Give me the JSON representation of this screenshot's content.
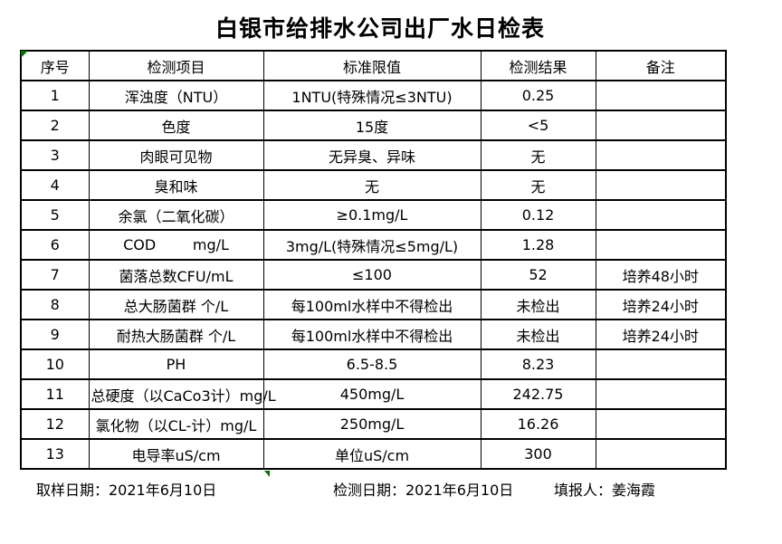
{
  "title": "白银市给排水公司出厂水日检表",
  "table": {
    "headers": [
      "序号",
      "检测项目",
      "标准限值",
      "检测结果",
      "备注"
    ],
    "rows": [
      {
        "no": "1",
        "item": "浑浊度（NTU）",
        "limit": "1NTU(特殊情况≤3NTU)",
        "result": "0.25",
        "note": ""
      },
      {
        "no": "2",
        "item": "色度",
        "limit": "15度",
        "result": "<5",
        "note": ""
      },
      {
        "no": "3",
        "item": "肉眼可见物",
        "limit": "无异臭、异味",
        "result": "无",
        "note": ""
      },
      {
        "no": "4",
        "item": "臭和味",
        "limit": "无",
        "result": "无",
        "note": ""
      },
      {
        "no": "5",
        "item": "余氯（二氧化碳）",
        "limit": "≥0.1mg/L",
        "result": "0.12",
        "note": ""
      },
      {
        "no": "6",
        "item": "COD        mg/L",
        "limit": "3mg/L(特殊情况≤5mg/L)",
        "result": "1.28",
        "note": ""
      },
      {
        "no": "7",
        "item": "菌落总数CFU/mL",
        "limit": "≤100",
        "result": "52",
        "note": "培养48小时"
      },
      {
        "no": "8",
        "item": "总大肠菌群 个/L",
        "limit": "每100ml水样中不得检出",
        "result": "未检出",
        "note": "培养24小时"
      },
      {
        "no": "9",
        "item": "耐热大肠菌群 个/L",
        "limit": "每100ml水样中不得检出",
        "result": "未检出",
        "note": "培养24小时"
      },
      {
        "no": "10",
        "item": "PH",
        "limit": "6.5-8.5",
        "result": "8.23",
        "note": ""
      },
      {
        "no": "11",
        "item": "总硬度（以CaCo3计）mg/L",
        "limit": "450mg/L",
        "result": "242.75",
        "note": ""
      },
      {
        "no": "12",
        "item": "氯化物（以CL-计）mg/L",
        "limit": "250mg/L",
        "result": "16.26",
        "note": ""
      },
      {
        "no": "13",
        "item": "电导率uS/cm",
        "limit": "单位uS/cm",
        "result": "300",
        "note": ""
      }
    ]
  },
  "footer": {
    "sampling_date": "取样日期：2021年6月10日",
    "test_date": "检测日期：2021年6月10日",
    "reporter": "填报人：姜海霞"
  },
  "colors": {
    "background": "#ffffff",
    "text": "#000000",
    "border": "#000000",
    "cell_marker_green": "#007500"
  }
}
